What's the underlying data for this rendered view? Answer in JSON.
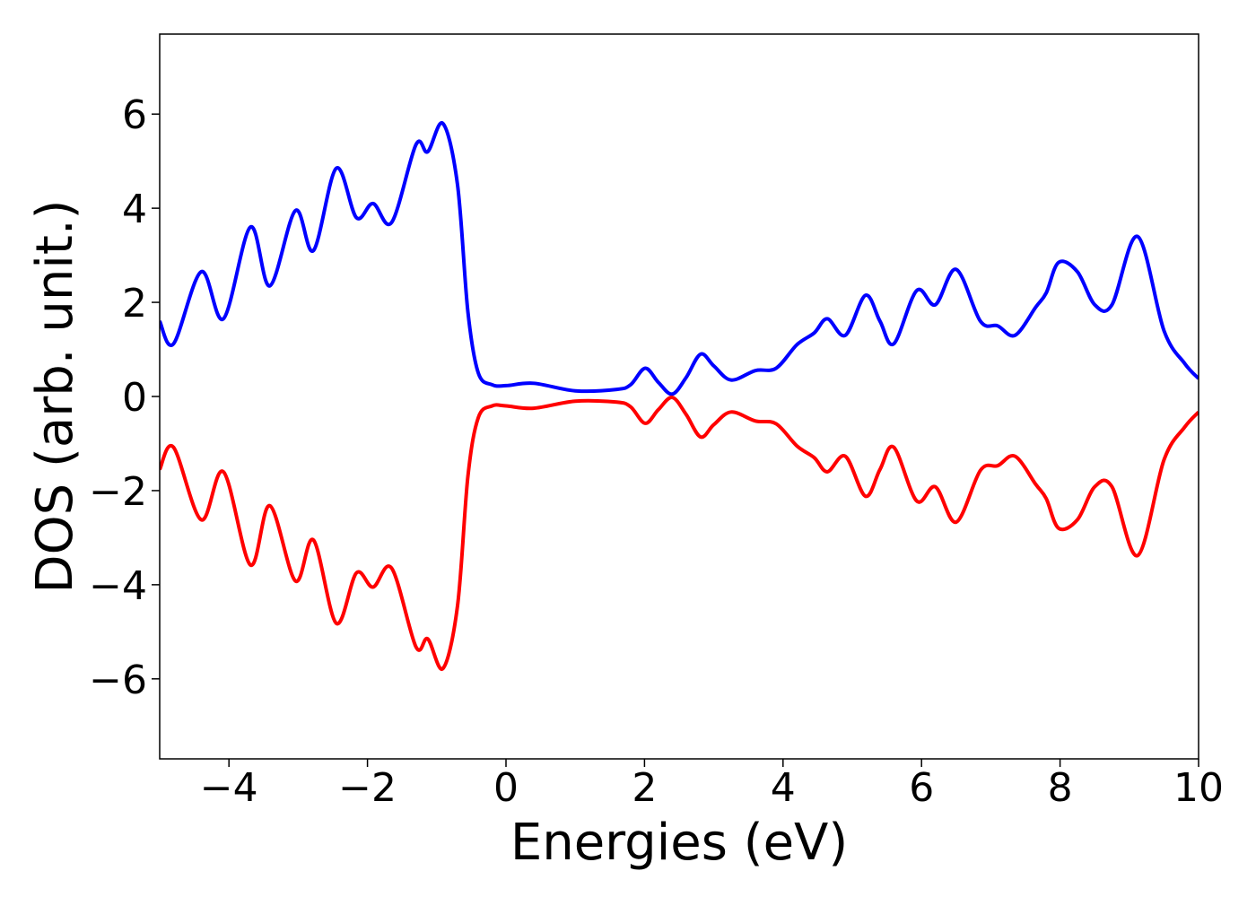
{
  "chart_data": {
    "type": "line",
    "xlabel": "Energies (eV)",
    "ylabel": "DOS (arb. unit.)",
    "x": [
      -5,
      -4.8,
      -4.4,
      -4.08,
      -3.69,
      -3.41,
      -3.04,
      -2.78,
      -2.45,
      -2.16,
      -1.92,
      -1.65,
      -1.3,
      -1.13,
      -0.91,
      -0.7,
      -0.55,
      -0.4,
      -0.2,
      0,
      0.4,
      1.0,
      1.6,
      1.8,
      2.01,
      2.2,
      2.4,
      2.6,
      2.81,
      3.0,
      3.25,
      3.6,
      3.9,
      4.2,
      4.45,
      4.64,
      4.9,
      5.19,
      5.4,
      5.6,
      5.93,
      6.2,
      6.5,
      6.85,
      7.1,
      7.35,
      7.65,
      7.8,
      7.98,
      8.25,
      8.5,
      8.75,
      9.12,
      9.5,
      9.8,
      10
    ],
    "series": [
      {
        "color": "#0000ff",
        "values": [
          1.6,
          1.12,
          2.65,
          1.65,
          3.6,
          2.35,
          3.95,
          3.1,
          4.85,
          3.8,
          4.1,
          3.7,
          5.35,
          5.2,
          5.8,
          4.5,
          1.8,
          0.5,
          0.25,
          0.23,
          0.28,
          0.12,
          0.15,
          0.25,
          0.6,
          0.3,
          0.05,
          0.4,
          0.9,
          0.65,
          0.35,
          0.55,
          0.6,
          1.1,
          1.35,
          1.65,
          1.3,
          2.15,
          1.6,
          1.12,
          2.25,
          1.95,
          2.7,
          1.6,
          1.5,
          1.3,
          1.9,
          2.2,
          2.85,
          2.65,
          1.95,
          1.95,
          3.4,
          1.4,
          0.7,
          0.38
        ]
      },
      {
        "color": "#ff0000",
        "values": [
          -1.55,
          -1.08,
          -2.62,
          -1.6,
          -3.58,
          -2.32,
          -3.92,
          -3.05,
          -4.82,
          -3.75,
          -4.05,
          -3.65,
          -5.32,
          -5.15,
          -5.78,
          -4.45,
          -1.7,
          -0.45,
          -0.2,
          -0.2,
          -0.25,
          -0.1,
          -0.12,
          -0.22,
          -0.57,
          -0.28,
          -0.02,
          -0.38,
          -0.86,
          -0.6,
          -0.33,
          -0.52,
          -0.58,
          -1.05,
          -1.3,
          -1.6,
          -1.27,
          -2.12,
          -1.55,
          -1.08,
          -2.22,
          -1.92,
          -2.67,
          -1.57,
          -1.47,
          -1.27,
          -1.87,
          -2.17,
          -2.8,
          -2.62,
          -1.92,
          -1.92,
          -3.38,
          -1.35,
          -0.65,
          -0.33
        ]
      }
    ],
    "xlim": [
      -5,
      10
    ],
    "ylim": [
      -7.7,
      7.7
    ],
    "xticks": [
      {
        "value": -4,
        "label": "−4"
      },
      {
        "value": -2,
        "label": "−2"
      },
      0,
      2,
      4,
      6,
      8,
      10
    ],
    "yticks": [
      {
        "value": -6,
        "label": "−6"
      },
      {
        "value": -4,
        "label": "−4"
      },
      {
        "value": -2,
        "label": "−2"
      },
      0,
      2,
      4,
      6
    ],
    "grid": false
  }
}
